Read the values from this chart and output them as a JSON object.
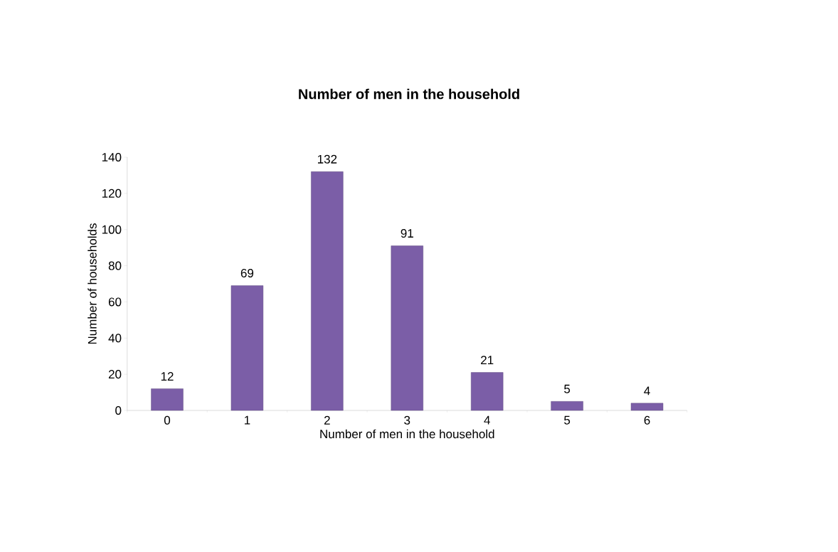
{
  "chart_data": {
    "type": "bar",
    "title": "Number of men in the household",
    "xlabel": "Number of men in the household",
    "ylabel": "Number of households",
    "categories": [
      "0",
      "1",
      "2",
      "3",
      "4",
      "5",
      "6"
    ],
    "values": [
      12,
      69,
      132,
      91,
      21,
      5,
      4
    ],
    "color": "#7b5ea7",
    "ylim": [
      0,
      140
    ],
    "yticks": [
      0,
      20,
      40,
      60,
      80,
      100,
      120,
      140
    ],
    "data_labels": true,
    "grid": false
  }
}
